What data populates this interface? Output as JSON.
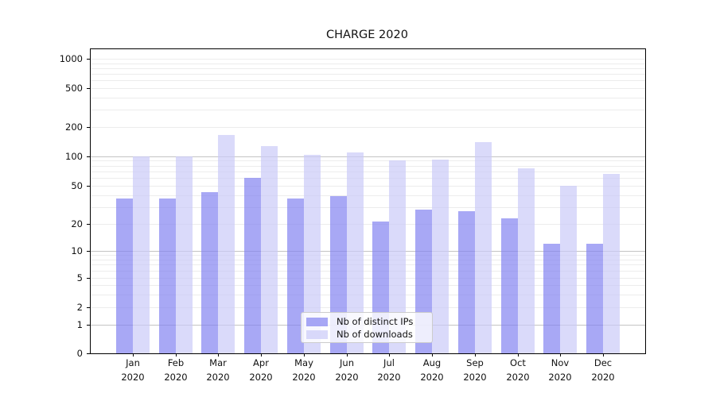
{
  "chart_data": {
    "type": "bar",
    "title": "CHARGE 2020",
    "categories": [
      "Jan 2020",
      "Feb 2020",
      "Mar 2020",
      "Apr 2020",
      "May 2020",
      "Jun 2020",
      "Jul 2020",
      "Aug 2020",
      "Sep 2020",
      "Oct 2020",
      "Nov 2020",
      "Dec 2020"
    ],
    "series": [
      {
        "name": "Nb of distinct IPs",
        "color": "rgba(131,131,241,0.7)",
        "values": [
          37,
          37,
          43,
          60,
          37,
          39,
          21,
          28,
          27,
          23,
          12,
          12
        ]
      },
      {
        "name": "Nb of downloads",
        "color": "rgba(202,202,248,0.7)",
        "values": [
          100,
          100,
          165,
          126,
          103,
          110,
          90,
          93,
          140,
          75,
          50,
          66
        ]
      }
    ],
    "xlabel": "",
    "ylabel": "",
    "yscale": "symlog",
    "yticks": [
      0,
      1,
      2,
      5,
      10,
      20,
      50,
      100,
      200,
      500,
      1000
    ],
    "grid": true,
    "legend_position": "lower center"
  }
}
